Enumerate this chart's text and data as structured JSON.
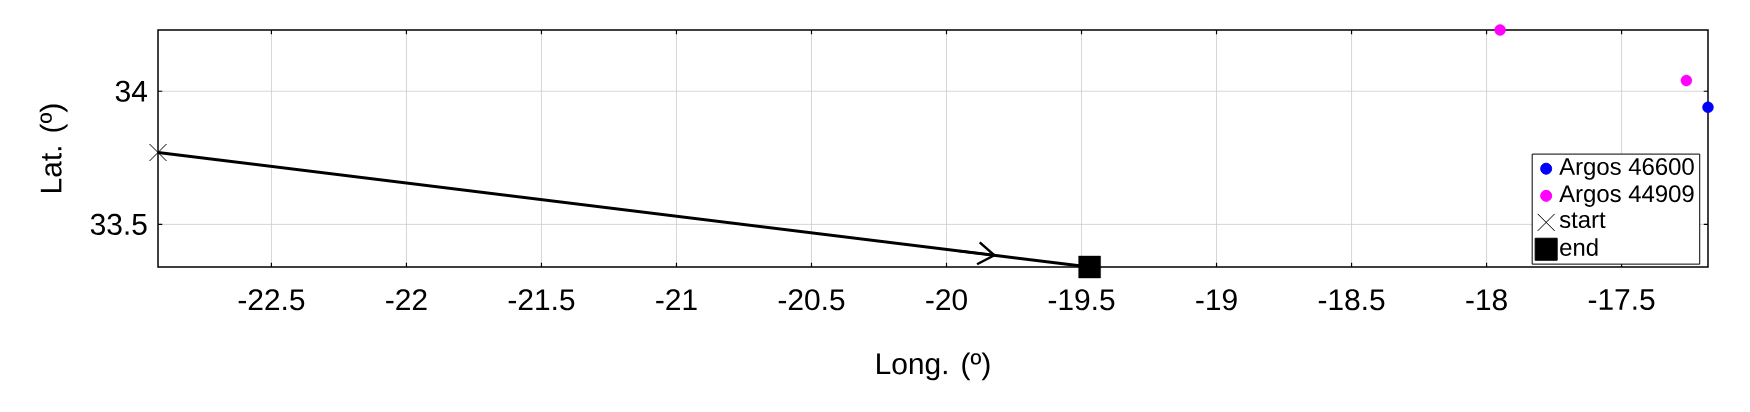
{
  "chart_data": {
    "type": "scatter",
    "xlabel": "Long. (º)",
    "ylabel": "Lat. (º)",
    "xlim": [
      -22.92,
      -17.18
    ],
    "ylim": [
      33.34,
      34.23
    ],
    "xticks": [
      -22.5,
      -22,
      -21.5,
      -21,
      -20.5,
      -20,
      -19.5,
      -19,
      -18.5,
      -18,
      -17.5
    ],
    "yticks": [
      33.5,
      34
    ],
    "grid": true,
    "legend": "bottom right",
    "series": [
      {
        "type": "line",
        "color": "#000000",
        "marker": "none",
        "line_style": "solid",
        "x": [
          -22.92,
          -19.47
        ],
        "values": [
          33.77,
          33.34
        ]
      },
      {
        "name": "Argos 46600",
        "color": "#0000ff",
        "marker": "circle",
        "x": [
          -17.18
        ],
        "values": [
          33.94
        ]
      },
      {
        "name": "Argos 44909",
        "color": "#ff00ff",
        "marker": "circle",
        "x": [
          -17.95,
          -17.26
        ],
        "values": [
          34.23,
          34.04
        ]
      },
      {
        "name": "start",
        "color": "#000000",
        "marker": "cross",
        "x": [
          -22.92
        ],
        "values": [
          33.77
        ]
      },
      {
        "name": "end",
        "color": "#000000",
        "marker": "square",
        "x": [
          -19.47
        ],
        "values": [
          33.34
        ]
      }
    ]
  }
}
